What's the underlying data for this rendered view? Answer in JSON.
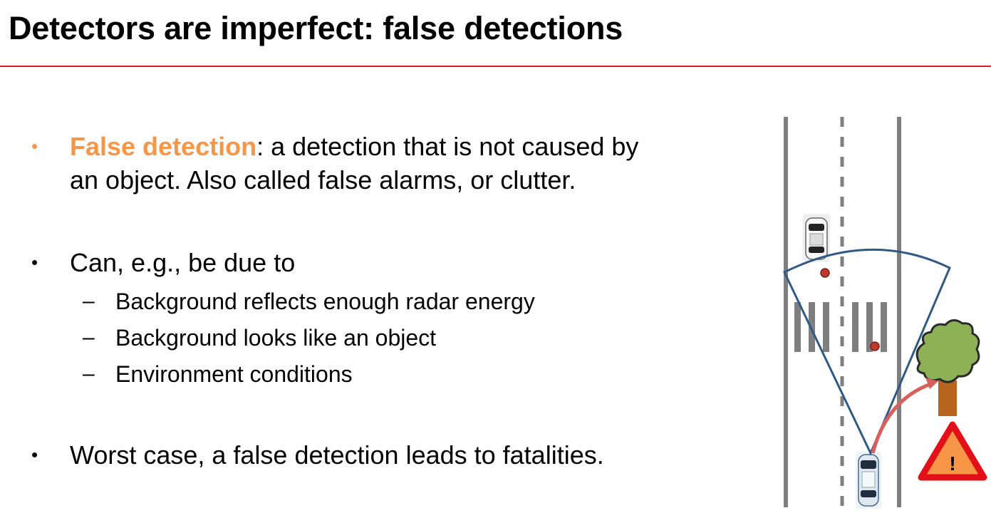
{
  "slide": {
    "title": "Detectors are imperfect: false detections"
  },
  "bullets": {
    "b1_term": "False detection",
    "b1_rest_line1": ": a detection that is not caused by",
    "b1_line2": "an object. Also called false alarms, or clutter.",
    "b2": "Can, e.g., be due to",
    "sub_items": [
      "Background reflects enough radar energy",
      "Background looks like an object",
      "Environment conditions"
    ],
    "b3": "Worst case, a false detection leads to fatalities.",
    "bullet_glyph": "•",
    "dash_glyph": "–"
  },
  "diagram": {
    "warning_glyph": "!",
    "icons": [
      "road-lane-lines",
      "parked-car-icon",
      "ego-car-icon",
      "radar-fov-sector",
      "crosswalk",
      "tree-icon",
      "warning-triangle-icon",
      "curved-arrow-icon"
    ]
  },
  "colors": {
    "accent_orange": "#f79646",
    "rule_red": "#d91a2a",
    "fov_blue": "#2f5a85",
    "detection_red": "#c0392b",
    "arrow_red": "#d9605a",
    "tree_green": "#8db255",
    "trunk_brown": "#b8641f",
    "warning_red": "#e3101a",
    "warning_fill": "#f79646",
    "lane_gray": "#7f7f7f"
  }
}
